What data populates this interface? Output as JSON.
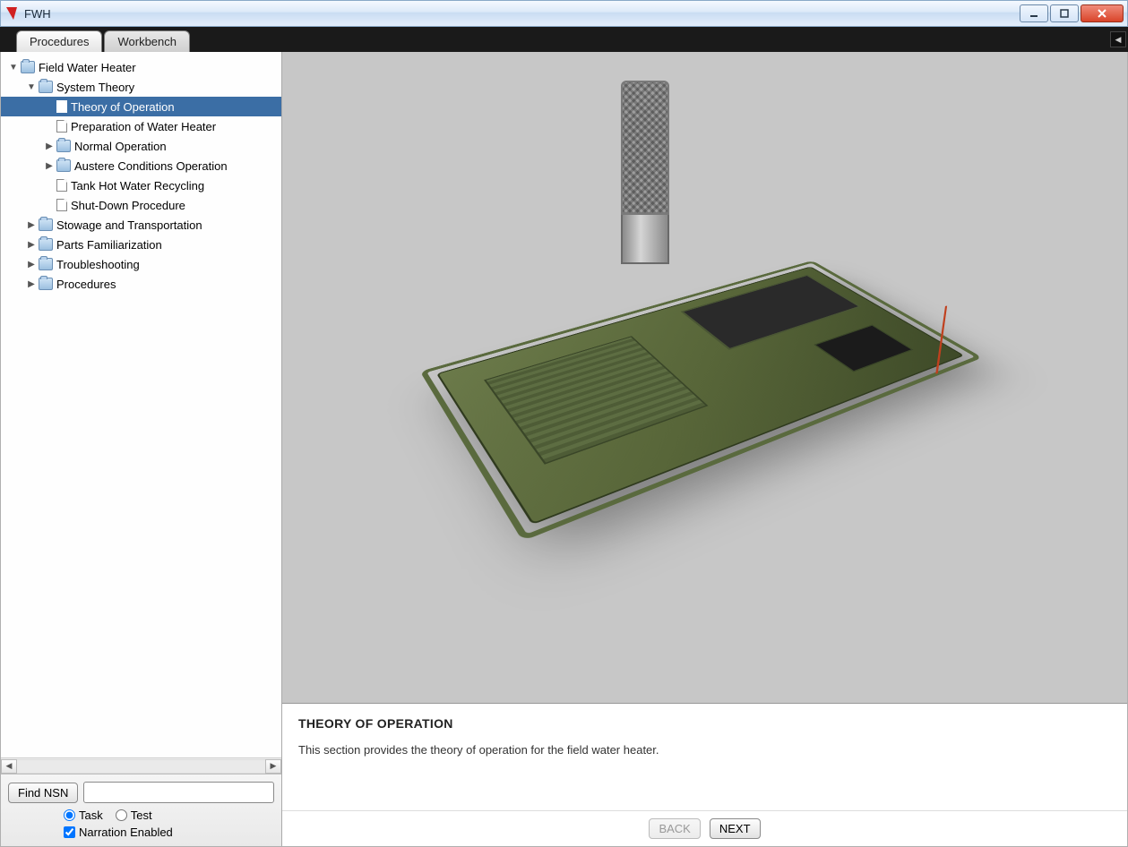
{
  "window": {
    "title": "FWH",
    "logo_color": "#d02020"
  },
  "tabs": {
    "active": "Procedures",
    "items": [
      "Procedures",
      "Workbench"
    ]
  },
  "tree": [
    {
      "depth": 0,
      "type": "folder",
      "expander": "▼",
      "label": "Field Water Heater"
    },
    {
      "depth": 1,
      "type": "folder",
      "expander": "▼",
      "label": "System Theory"
    },
    {
      "depth": 2,
      "type": "doc",
      "expander": "",
      "label": "Theory of Operation",
      "selected": true
    },
    {
      "depth": 2,
      "type": "doc",
      "expander": "",
      "label": "Preparation of Water Heater"
    },
    {
      "depth": 2,
      "type": "folder",
      "expander": "▶",
      "label": "Normal Operation"
    },
    {
      "depth": 2,
      "type": "folder",
      "expander": "▶",
      "label": "Austere Conditions Operation"
    },
    {
      "depth": 2,
      "type": "doc",
      "expander": "",
      "label": "Tank Hot Water Recycling"
    },
    {
      "depth": 2,
      "type": "doc",
      "expander": "",
      "label": "Shut-Down Procedure"
    },
    {
      "depth": 1,
      "type": "folder",
      "expander": "▶",
      "label": "Stowage and Transportation"
    },
    {
      "depth": 1,
      "type": "folder",
      "expander": "▶",
      "label": "Parts Familiarization"
    },
    {
      "depth": 1,
      "type": "folder",
      "expander": "▶",
      "label": "Troubleshooting"
    },
    {
      "depth": 1,
      "type": "folder",
      "expander": "▶",
      "label": "Procedures"
    }
  ],
  "search": {
    "button": "Find NSN",
    "value": "",
    "radios": {
      "task": "Task",
      "test": "Test",
      "selected": "task"
    },
    "narration_label": "Narration Enabled",
    "narration_checked": true
  },
  "content": {
    "title": "THEORY OF OPERATION",
    "body": "This section provides the theory of operation for the field water heater."
  },
  "nav": {
    "back": "BACK",
    "next": "NEXT",
    "back_enabled": false,
    "next_enabled": true
  },
  "colors": {
    "viewport_bg": "#c7c7c7",
    "selection_bg": "#3b6ea5",
    "model_green_light": "#6b7a4a",
    "model_green_dark": "#3e4a28",
    "cable": "#c0401e"
  }
}
